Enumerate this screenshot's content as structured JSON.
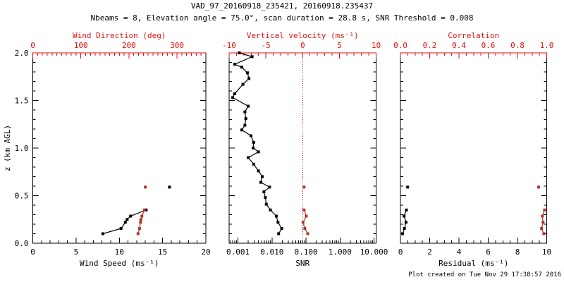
{
  "header": {
    "title": "VAD_97_20160918_235421, 20160918.235437",
    "subtitle": "Nbeams = 8, Elevation angle = 75.0°, scan duration = 28.8 s, SNR Threshold = 0.008"
  },
  "footer": {
    "created": "Plot created on Tue Nov 29 17:38:57 2016"
  },
  "colors": {
    "axis_red": "#e01212",
    "data_red": "#ae3529",
    "black": "#000000"
  },
  "chart_data": {
    "type": "scatter",
    "grid": "off",
    "y_axis": {
      "label": "z (km AGL)",
      "min": 0,
      "max": 2,
      "majors": [
        "0.0",
        "0.5",
        "1.0",
        "1.5",
        "2.0"
      ],
      "minor_step": 0.1
    },
    "panels": [
      {
        "name": "wind",
        "bottom_axis": {
          "label": "Wind Speed (ms⁻¹)",
          "scale": "linear",
          "min": 0,
          "max": 20,
          "majors": [
            0,
            5,
            10,
            15,
            20
          ],
          "labels": [
            "0",
            "5",
            "10",
            "15",
            "20"
          ],
          "minor_step": 1
        },
        "top_axis": {
          "label": "Wind Direction (deg)",
          "scale": "linear",
          "min": 0,
          "max": 360,
          "majors": [
            0,
            100,
            200,
            300
          ],
          "labels": [
            "0",
            "100",
            "200",
            "300"
          ],
          "minor_step": 10
        },
        "series": [
          {
            "name": "wind-speed",
            "axis": "bottom",
            "color": "black",
            "connect": true,
            "points": [
              [
                8.1,
                0.1
              ],
              [
                10.2,
                0.155
              ],
              [
                10.7,
                0.22
              ],
              [
                10.9,
                0.25
              ],
              [
                11.3,
                0.285
              ],
              [
                13.1,
                0.35
              ]
            ]
          },
          {
            "name": "wind-speed-isolated",
            "axis": "bottom",
            "color": "black",
            "connect": false,
            "points": [
              [
                15.8,
                0.59
              ]
            ]
          },
          {
            "name": "wind-direction",
            "axis": "top",
            "color": "red",
            "connect": true,
            "points": [
              [
                219,
                0.1
              ],
              [
                222,
                0.155
              ],
              [
                224,
                0.22
              ],
              [
                225,
                0.25
              ],
              [
                227,
                0.285
              ],
              [
                232,
                0.35
              ]
            ]
          },
          {
            "name": "wind-direction-isolated",
            "axis": "top",
            "color": "red",
            "connect": false,
            "points": [
              [
                234,
                0.59
              ]
            ]
          }
        ]
      },
      {
        "name": "snr-velocity",
        "bottom_axis": {
          "label": "SNR",
          "scale": "log",
          "min": 0.00055,
          "max": 11.5,
          "majors": [
            0.001,
            0.01,
            0.1,
            1,
            10
          ],
          "labels": [
            "0.001",
            "0.010",
            "0.100",
            "1.000",
            "10.000"
          ]
        },
        "top_axis": {
          "label": "Vertical velocity (ms⁻¹)",
          "scale": "linear",
          "min": -10,
          "max": 10,
          "majors": [
            -10,
            -5,
            0,
            5,
            10
          ],
          "labels": [
            "-10",
            "-5",
            "0",
            "5",
            "10"
          ],
          "minor_step": 1
        },
        "zero_line": {
          "axis": "top",
          "value": 0,
          "style": "dotted"
        },
        "series": [
          {
            "name": "snr-profile",
            "axis": "bottom",
            "color": "black",
            "connect": true,
            "points": [
              [
                0.0011,
                2.0
              ],
              [
                0.0026,
                1.96
              ],
              [
                0.0008,
                1.88
              ],
              [
                0.0013,
                1.85
              ],
              [
                0.0019,
                1.79
              ],
              [
                0.0021,
                1.73
              ],
              [
                0.0014,
                1.67
              ],
              [
                0.0008,
                1.57
              ],
              [
                0.0007,
                1.53
              ],
              [
                0.002,
                1.44
              ],
              [
                0.0016,
                1.38
              ],
              [
                0.0017,
                1.31
              ],
              [
                0.0016,
                1.24
              ],
              [
                0.0013,
                1.19
              ],
              [
                0.0024,
                1.13
              ],
              [
                0.0029,
                1.06
              ],
              [
                0.0028,
                1.0
              ],
              [
                0.004,
                0.96
              ],
              [
                0.002,
                0.9
              ],
              [
                0.0029,
                0.83
              ],
              [
                0.004,
                0.76
              ],
              [
                0.0052,
                0.7
              ],
              [
                0.0047,
                0.64
              ],
              [
                0.0085,
                0.59
              ],
              [
                0.0058,
                0.54
              ],
              [
                0.0064,
                0.48
              ],
              [
                0.0068,
                0.41
              ],
              [
                0.009,
                0.35
              ],
              [
                0.0134,
                0.285
              ],
              [
                0.015,
                0.22
              ],
              [
                0.0193,
                0.155
              ],
              [
                0.0157,
                0.1
              ]
            ]
          },
          {
            "name": "vertical-velocity",
            "axis": "top",
            "color": "red",
            "connect": true,
            "points": [
              [
                0.7,
                0.1
              ],
              [
                0.3,
                0.155
              ],
              [
                0.05,
                0.22
              ],
              [
                0.5,
                0.285
              ],
              [
                0.2,
                0.35
              ]
            ]
          },
          {
            "name": "vertical-velocity-isolated",
            "axis": "top",
            "color": "red",
            "connect": false,
            "points": [
              [
                0.2,
                0.59
              ]
            ]
          }
        ]
      },
      {
        "name": "residual-correlation",
        "bottom_axis": {
          "label": "Residual (ms⁻¹)",
          "scale": "linear",
          "min": 0,
          "max": 10,
          "majors": [
            0,
            2,
            4,
            6,
            8,
            10
          ],
          "labels": [
            "0",
            "2",
            "4",
            "6",
            "8",
            "10"
          ],
          "minor_step": 0.5
        },
        "top_axis": {
          "label": "Correlation",
          "scale": "linear",
          "min": 0,
          "max": 1,
          "majors": [
            0,
            0.2,
            0.4,
            0.6,
            0.8,
            1
          ],
          "labels": [
            "0.0",
            "0.2",
            "0.4",
            "0.6",
            "0.8",
            "1.0"
          ],
          "minor_step": 0.05
        },
        "series": [
          {
            "name": "residual",
            "axis": "bottom",
            "color": "black",
            "connect": true,
            "points": [
              [
                0.15,
                0.1
              ],
              [
                0.27,
                0.155
              ],
              [
                0.38,
                0.22
              ],
              [
                0.25,
                0.285
              ],
              [
                0.41,
                0.35
              ]
            ]
          },
          {
            "name": "residual-isolated",
            "axis": "bottom",
            "color": "black",
            "connect": false,
            "points": [
              [
                0.49,
                0.59
              ]
            ]
          },
          {
            "name": "correlation",
            "axis": "top",
            "color": "red",
            "connect": true,
            "points": [
              [
                0.98,
                0.1
              ],
              [
                0.965,
                0.155
              ],
              [
                0.975,
                0.22
              ],
              [
                0.97,
                0.285
              ],
              [
                0.985,
                0.35
              ]
            ]
          },
          {
            "name": "correlation-isolated",
            "axis": "top",
            "color": "red",
            "connect": false,
            "points": [
              [
                0.945,
                0.59
              ]
            ]
          }
        ]
      }
    ]
  }
}
